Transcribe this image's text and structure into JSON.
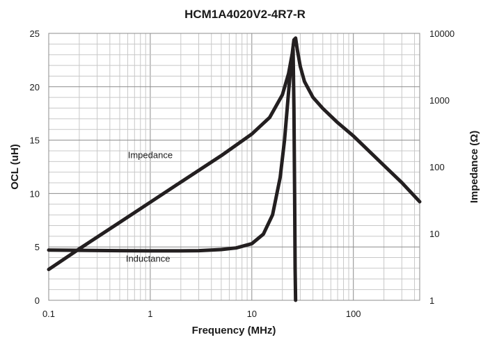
{
  "chart_data": {
    "type": "line",
    "title": "HCM1A4020V2-4R7-R",
    "xlabel": "Frequency (MHz)",
    "ylabel": "OCL (uH)",
    "y2label": "Impedance (Ω)",
    "x_scale": "log",
    "xlim": [
      0.1,
      450
    ],
    "ylim": [
      0,
      25
    ],
    "y2_scale": "log",
    "y2lim": [
      1,
      10000
    ],
    "grid": true,
    "x_ticks": [
      "0.1",
      "1",
      "10",
      "100"
    ],
    "y_ticks": [
      "0",
      "5",
      "10",
      "15",
      "20",
      "25"
    ],
    "y2_ticks": [
      "1",
      "10",
      "100",
      "1000",
      "10000"
    ],
    "annotations": [
      {
        "text": "Impedance",
        "x": 1.0,
        "y": 13.3
      },
      {
        "text": "Inductance",
        "x": 0.95,
        "y": 3.6
      }
    ],
    "series": [
      {
        "name": "Impedance",
        "axis": "right",
        "x": [
          0.1,
          0.2,
          0.5,
          1,
          2,
          5,
          10,
          15,
          20,
          23,
          25,
          26,
          27,
          28,
          30,
          33,
          40,
          50,
          70,
          100,
          150,
          200,
          300,
          450
        ],
        "y": [
          2.9,
          5.9,
          14.7,
          29.5,
          59,
          147,
          310,
          550,
          1200,
          2500,
          5000,
          8000,
          8500,
          5800,
          3200,
          1900,
          1100,
          750,
          460,
          290,
          160,
          105,
          58,
          30
        ]
      },
      {
        "name": "Inductance",
        "axis": "left",
        "x": [
          0.1,
          0.2,
          0.5,
          1,
          2,
          3,
          5,
          7,
          10,
          13,
          16,
          19,
          21,
          23,
          24.5,
          25.5,
          26,
          26.4,
          26.7,
          27
        ],
        "y": [
          4.7,
          4.68,
          4.65,
          4.63,
          4.63,
          4.65,
          4.75,
          4.9,
          5.3,
          6.2,
          8.0,
          11.5,
          15.0,
          19.5,
          22.5,
          23.5,
          18.0,
          10.0,
          3.0,
          0
        ]
      }
    ]
  }
}
